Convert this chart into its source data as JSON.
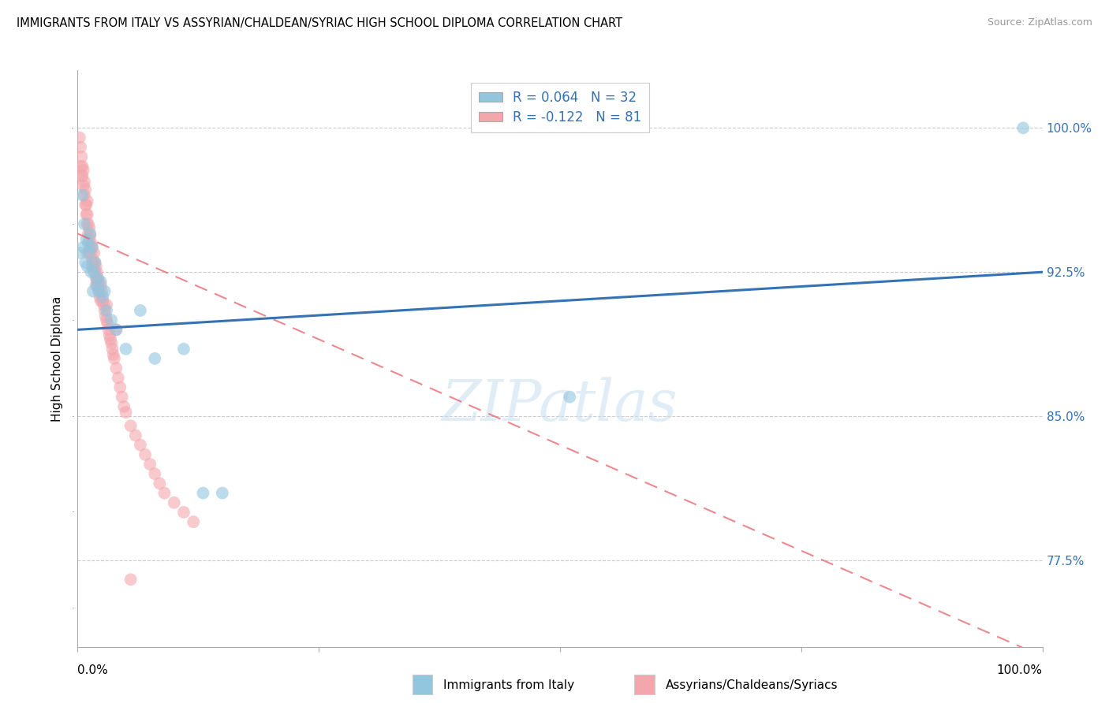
{
  "title": "IMMIGRANTS FROM ITALY VS ASSYRIAN/CHALDEAN/SYRIAC HIGH SCHOOL DIPLOMA CORRELATION CHART",
  "source": "Source: ZipAtlas.com",
  "ylabel": "High School Diploma",
  "ytick_labels": [
    "77.5%",
    "85.0%",
    "92.5%",
    "100.0%"
  ],
  "ytick_values": [
    77.5,
    85.0,
    92.5,
    100.0
  ],
  "xlim": [
    0.0,
    100.0
  ],
  "ylim": [
    73.0,
    103.0
  ],
  "legend_label1": "R = 0.064   N = 32",
  "legend_label2": "R = -0.122   N = 81",
  "bottom_label1": "Immigrants from Italy",
  "bottom_label2": "Assyrians/Chaldeans/Syriacs",
  "blue_color": "#92c5de",
  "pink_color": "#f4a6ad",
  "blue_line_color": "#3472b5",
  "pink_line_color": "#e8606a",
  "blue_scatter": {
    "x": [
      0.3,
      0.5,
      0.6,
      0.7,
      0.8,
      0.9,
      1.0,
      1.1,
      1.2,
      1.3,
      1.4,
      1.5,
      1.6,
      1.7,
      1.8,
      1.9,
      2.0,
      2.2,
      2.4,
      2.6,
      2.8,
      3.0,
      3.5,
      4.0,
      5.0,
      6.5,
      8.0,
      11.0,
      13.0,
      15.0,
      51.0,
      98.0
    ],
    "y": [
      93.5,
      96.5,
      93.8,
      95.0,
      93.0,
      94.2,
      92.8,
      94.0,
      93.5,
      94.5,
      92.5,
      93.8,
      91.5,
      92.5,
      93.0,
      91.8,
      92.2,
      91.5,
      92.0,
      91.2,
      91.5,
      90.5,
      90.0,
      89.5,
      88.5,
      90.5,
      88.0,
      88.5,
      81.0,
      81.0,
      86.0,
      100.0
    ]
  },
  "pink_scatter": {
    "x": [
      0.2,
      0.3,
      0.4,
      0.5,
      0.5,
      0.6,
      0.6,
      0.7,
      0.7,
      0.8,
      0.8,
      0.9,
      0.9,
      1.0,
      1.0,
      1.0,
      1.1,
      1.1,
      1.2,
      1.2,
      1.3,
      1.3,
      1.4,
      1.4,
      1.5,
      1.5,
      1.6,
      1.7,
      1.7,
      1.8,
      1.8,
      1.9,
      1.9,
      2.0,
      2.0,
      2.1,
      2.1,
      2.2,
      2.2,
      2.3,
      2.4,
      2.4,
      2.5,
      2.6,
      2.7,
      2.8,
      2.9,
      3.0,
      3.1,
      3.2,
      3.3,
      3.4,
      3.5,
      3.6,
      3.7,
      3.8,
      4.0,
      4.2,
      4.4,
      4.6,
      4.8,
      5.0,
      5.5,
      6.0,
      6.5,
      7.0,
      7.5,
      8.0,
      8.5,
      9.0,
      10.0,
      11.0,
      12.0,
      0.3,
      0.4,
      1.0,
      1.5,
      2.0,
      3.0,
      4.0,
      5.5
    ],
    "y": [
      99.5,
      99.0,
      98.5,
      97.5,
      98.0,
      97.0,
      97.8,
      96.5,
      97.2,
      96.0,
      96.8,
      95.5,
      96.0,
      95.0,
      95.5,
      96.2,
      94.5,
      95.0,
      94.2,
      94.8,
      93.8,
      94.4,
      93.5,
      94.0,
      93.2,
      93.8,
      93.0,
      92.8,
      93.5,
      92.5,
      93.0,
      92.2,
      92.8,
      92.0,
      92.5,
      91.8,
      92.2,
      91.5,
      92.0,
      91.2,
      91.8,
      91.0,
      91.5,
      91.0,
      90.8,
      90.5,
      90.2,
      90.0,
      89.8,
      89.5,
      89.2,
      89.0,
      88.8,
      88.5,
      88.2,
      88.0,
      87.5,
      87.0,
      86.5,
      86.0,
      85.5,
      85.2,
      84.5,
      84.0,
      83.5,
      83.0,
      82.5,
      82.0,
      81.5,
      81.0,
      80.5,
      80.0,
      79.5,
      98.0,
      97.5,
      93.5,
      92.8,
      91.8,
      90.8,
      89.5,
      76.5
    ]
  },
  "blue_trend": {
    "x_start": 0.0,
    "x_end": 100.0,
    "y_start": 89.5,
    "y_end": 92.5
  },
  "pink_trend": {
    "x_start": 0.0,
    "x_end": 100.0,
    "y_start": 94.5,
    "y_end": 72.5
  },
  "xtick_positions": [
    0,
    25,
    50,
    75,
    100
  ],
  "background_color": "#ffffff",
  "grid_color": "#cccccc",
  "watermark": "ZIPatlas"
}
